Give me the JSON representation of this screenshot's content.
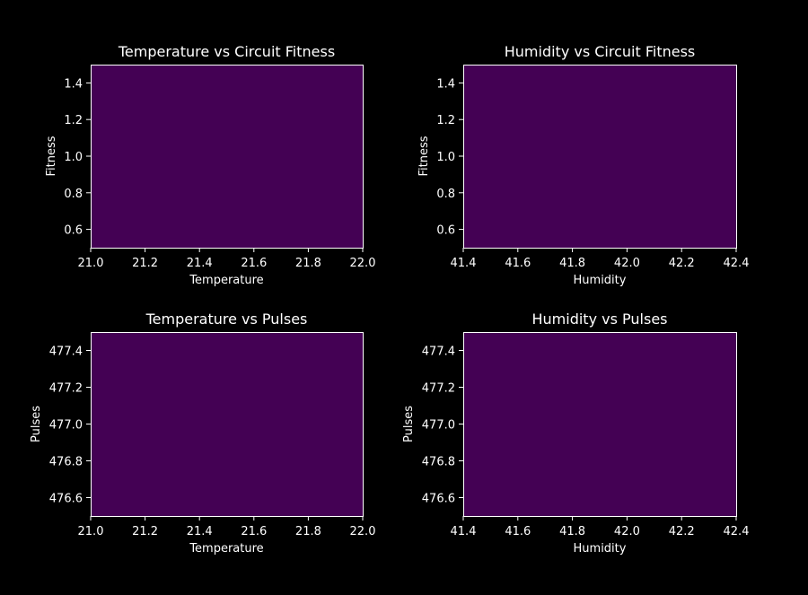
{
  "figure": {
    "background": "#000000",
    "text_color": "#ffffff",
    "fill_color": "#440154"
  },
  "chart_data": [
    {
      "type": "heatmap",
      "title": "Temperature vs Circuit Fitness",
      "xlabel": "Temperature",
      "ylabel": "Fitness",
      "xlim": [
        21.0,
        22.0
      ],
      "ylim": [
        0.5,
        1.5
      ],
      "xticks": [
        "21.0",
        "21.2",
        "21.4",
        "21.6",
        "21.8",
        "22.0"
      ],
      "yticks": [
        "0.6",
        "0.8",
        "1.0",
        "1.2",
        "1.4"
      ],
      "fill": "#440154",
      "grid": false
    },
    {
      "type": "heatmap",
      "title": "Humidity vs Circuit Fitness",
      "xlabel": "Humidity",
      "ylabel": "Fitness",
      "xlim": [
        41.4,
        42.4
      ],
      "ylim": [
        0.5,
        1.5
      ],
      "xticks": [
        "41.4",
        "41.6",
        "41.8",
        "42.0",
        "42.2",
        "42.4"
      ],
      "yticks": [
        "0.6",
        "0.8",
        "1.0",
        "1.2",
        "1.4"
      ],
      "fill": "#440154",
      "grid": false
    },
    {
      "type": "heatmap",
      "title": "Temperature vs Pulses",
      "xlabel": "Temperature",
      "ylabel": "Pulses",
      "xlim": [
        21.0,
        22.0
      ],
      "ylim": [
        476.5,
        477.5
      ],
      "xticks": [
        "21.0",
        "21.2",
        "21.4",
        "21.6",
        "21.8",
        "22.0"
      ],
      "yticks": [
        "476.6",
        "476.8",
        "477.0",
        "477.2",
        "477.4"
      ],
      "fill": "#440154",
      "grid": false
    },
    {
      "type": "heatmap",
      "title": "Humidity vs Pulses",
      "xlabel": "Humidity",
      "ylabel": "Pulses",
      "xlim": [
        41.4,
        42.4
      ],
      "ylim": [
        476.5,
        477.5
      ],
      "xticks": [
        "41.4",
        "41.6",
        "41.8",
        "42.0",
        "42.2",
        "42.4"
      ],
      "yticks": [
        "476.6",
        "476.8",
        "477.0",
        "477.2",
        "477.4"
      ],
      "fill": "#440154",
      "grid": false
    }
  ]
}
